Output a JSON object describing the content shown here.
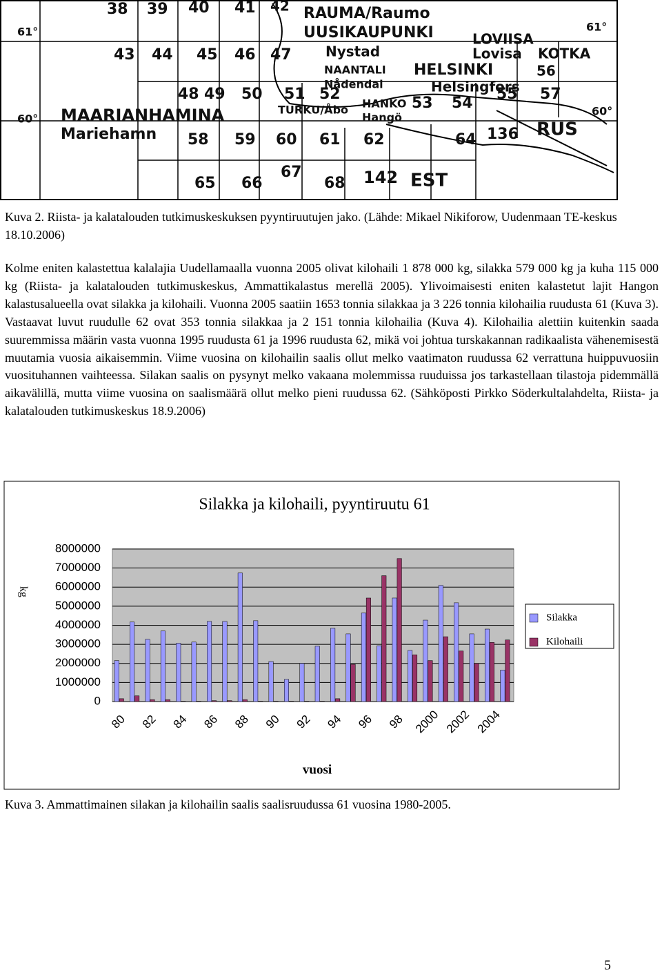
{
  "map": {
    "labels": [
      "38",
      "39",
      "40",
      "41",
      "42",
      "RAUMA/Raumo",
      "61°",
      "UUSIKAUPUNKI",
      "LOVIISA",
      "61°",
      "Nystad",
      "Lovisa",
      "KOTKA",
      "43",
      "44",
      "45",
      "46",
      "47",
      "NAANTALI",
      "HELSINKI",
      "56",
      "Nådendal",
      "Helsingfors",
      "55",
      "57",
      "48",
      "49",
      "50",
      "51",
      "52",
      "HANKO",
      "53",
      "54",
      "MAARIANHAMINA",
      "TURKU/Åbo",
      "Hangö",
      "60°",
      "60°",
      "Mariehamn",
      "136",
      "RUS",
      "58",
      "59",
      "60",
      "61",
      "62",
      "64",
      "67",
      "142",
      "EST",
      "65",
      "66",
      "68"
    ]
  },
  "map_caption": "Kuva 2. Riista- ja kalatalouden tutkimuskeskuksen pyyntiruutujen jako. (Lähde: Mikael Nikiforow, Uudenmaan TE-keskus 18.10.2006)",
  "paragraph": "Kolme eniten kalastettua kalalajia Uudellamaalla vuonna 2005 olivat kilohaili 1 878 000 kg, silakka 579 000 kg ja kuha 115 000 kg (Riista- ja kalatalouden tutkimuskeskus, Ammattikalastus merellä 2005). Ylivoimaisesti eniten kalastetut lajit Hangon kalastusalueella ovat silakka ja kilohaili. Vuonna 2005 saatiin 1653 tonnia silakkaa ja 3 226 tonnia kilohailia ruudusta 61 (Kuva 3). Vastaavat luvut ruudulle 62 ovat 353 tonnia silakkaa ja 2 151 tonnia kilohailia (Kuva 4). Kilohailia alettiin kuitenkin saada suuremmissa määrin vasta vuonna 1995 ruudusta 61 ja 1996 ruudusta 62, mikä voi johtua turskakannan radikaalista vähenemisestä muutamia vuosia aikaisemmin. Viime vuosina on kilohailin saalis ollut melko vaatimaton ruudussa 62 verrattuna huippuvuosiin vuosituhannen vaihteessa. Silakan saalis on pysynyt melko vakaana molemmissa ruuduissa jos tarkastellaan tilastoja pidemmällä aikavälillä, mutta viime vuosina on saalismäärä ollut melko pieni ruudussa 62. (Sähköposti Pirkko Söderkultalahdelta, Riista- ja kalatalouden tutkimuskeskus 18.9.2006)",
  "chart_data": {
    "type": "bar",
    "title": "Silakka ja kilohaili, pyyntiruutu 61",
    "y_label": "kg",
    "x_label": "vuosi",
    "categories": [
      "80",
      null,
      "82",
      null,
      "84",
      null,
      "86",
      null,
      "88",
      null,
      "90",
      null,
      "92",
      null,
      "94",
      null,
      "96",
      null,
      "98",
      null,
      "2000",
      null,
      "2002",
      null,
      "2004",
      null
    ],
    "series": [
      {
        "name": "Silakka",
        "color": "#9999ff",
        "values": [
          2150000,
          4170000,
          3260000,
          3700000,
          3060000,
          3120000,
          4200000,
          4200000,
          6740000,
          4240000,
          2100000,
          1160000,
          2000000,
          2900000,
          3840000,
          3550000,
          4640000,
          2930000,
          5430000,
          2680000,
          4270000,
          6090000,
          5180000,
          3550000,
          3800000,
          1650000
        ]
      },
      {
        "name": "Kilohaili",
        "color": "#993366",
        "values": [
          150000,
          300000,
          100000,
          100000,
          20000,
          20000,
          50000,
          50000,
          100000,
          20000,
          20000,
          20000,
          20000,
          20000,
          150000,
          1950000,
          5430000,
          6600000,
          7500000,
          2450000,
          2150000,
          3400000,
          2650000,
          2000000,
          3100000,
          3230000
        ]
      }
    ],
    "ylim": [
      0,
      8000000
    ],
    "yticks": [
      0,
      1000000,
      2000000,
      3000000,
      4000000,
      5000000,
      6000000,
      7000000,
      8000000
    ],
    "grid": true,
    "plot_background": "#c0c0c0"
  },
  "chart_caption": "Kuva 3. Ammattimainen silakan ja kilohailin saalis saalisruudussa 61 vuosina 1980-2005.",
  "page_number": "5"
}
